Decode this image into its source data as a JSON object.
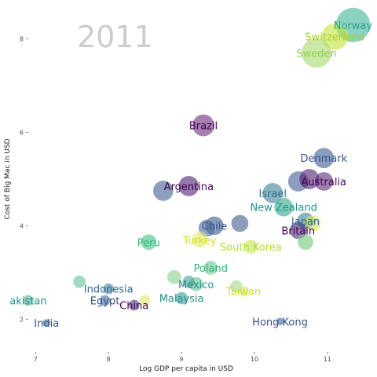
{
  "chart_data": {
    "type": "scatter",
    "annotation": "2011",
    "xlabel": "Log GDP per capita in USD",
    "ylabel": "Cost of Big Mac in USD",
    "xlim": [
      6.9,
      11.55
    ],
    "ylim": [
      1.3,
      8.7
    ],
    "xticks": [
      7,
      8,
      9,
      10,
      11
    ],
    "yticks": [
      2,
      4,
      6,
      8
    ],
    "grid": false,
    "points": [
      {
        "x": 11.35,
        "y": 8.3,
        "size": 22,
        "color": "#3cb596",
        "label": "Norway",
        "lcolor": "#2a9d8f"
      },
      {
        "x": 11.1,
        "y": 8.05,
        "size": 17,
        "color": "#c5e33a",
        "label": "Switzerland",
        "lcolor": "#a8cf2e"
      },
      {
        "x": 10.85,
        "y": 7.7,
        "size": 19,
        "color": "#a9d86a",
        "label": "Sweden",
        "lcolor": "#8fd14f"
      },
      {
        "x": 9.3,
        "y": 6.15,
        "size": 14,
        "color": "#6a2a7c",
        "label": "Brazil",
        "lcolor": "#440154"
      },
      {
        "x": 10.95,
        "y": 5.45,
        "size": 13,
        "color": "#3a5d93",
        "label": "Denmark",
        "lcolor": "#3b528b"
      },
      {
        "x": 10.6,
        "y": 4.95,
        "size": 13,
        "color": "#405e94",
        "label": "",
        "lcolor": ""
      },
      {
        "x": 10.75,
        "y": 5.0,
        "size": 13,
        "color": "#4c1e6e",
        "label": "",
        "lcolor": ""
      },
      {
        "x": 10.95,
        "y": 4.95,
        "size": 12,
        "color": "#5a2a78",
        "label": "Australia",
        "lcolor": "#440154"
      },
      {
        "x": 10.25,
        "y": 4.7,
        "size": 13,
        "color": "#3f7d96",
        "label": "Israel",
        "lcolor": "#2c728e"
      },
      {
        "x": 9.1,
        "y": 4.85,
        "size": 13,
        "color": "#4c1e6e",
        "label": "Argentina",
        "lcolor": "#440154"
      },
      {
        "x": 8.75,
        "y": 4.75,
        "size": 13,
        "color": "#415d93",
        "label": "",
        "lcolor": ""
      },
      {
        "x": 10.4,
        "y": 4.4,
        "size": 12,
        "color": "#2fa88a",
        "label": "New Zealand",
        "lcolor": "#21918c"
      },
      {
        "x": 10.7,
        "y": 4.1,
        "size": 11,
        "color": "#3d7f9a",
        "label": "Japan",
        "lcolor": "#31688e"
      },
      {
        "x": 10.8,
        "y": 4.05,
        "size": 10,
        "color": "#d3e84f",
        "label": "",
        "lcolor": ""
      },
      {
        "x": 9.8,
        "y": 4.05,
        "size": 11,
        "color": "#3f5c93",
        "label": "",
        "lcolor": ""
      },
      {
        "x": 9.45,
        "y": 4.0,
        "size": 12,
        "color": "#3b5890",
        "label": "Chile",
        "lcolor": "#3b528b"
      },
      {
        "x": 9.35,
        "y": 3.95,
        "size": 11,
        "color": "#4a6a98",
        "label": "",
        "lcolor": ""
      },
      {
        "x": 10.6,
        "y": 3.9,
        "size": 11,
        "color": "#4b2a78",
        "label": "Britain",
        "lcolor": "#440154"
      },
      {
        "x": 9.25,
        "y": 3.7,
        "size": 10,
        "color": "#dfe95e",
        "label": "Turkey",
        "lcolor": "#d0e11c"
      },
      {
        "x": 8.55,
        "y": 3.65,
        "size": 10,
        "color": "#43c08a",
        "label": "Peru",
        "lcolor": "#35b779"
      },
      {
        "x": 10.7,
        "y": 3.65,
        "size": 10,
        "color": "#70c97a",
        "label": "",
        "lcolor": ""
      },
      {
        "x": 9.95,
        "y": 3.55,
        "size": 9,
        "color": "#c9e55a",
        "label": "South Korea",
        "lcolor": "#b5de2b"
      },
      {
        "x": 9.4,
        "y": 3.1,
        "size": 9,
        "color": "#68c78f",
        "label": "Poland",
        "lcolor": "#35b779"
      },
      {
        "x": 8.9,
        "y": 2.9,
        "size": 9,
        "color": "#86d18a",
        "label": "",
        "lcolor": ""
      },
      {
        "x": 9.2,
        "y": 2.75,
        "size": 9,
        "color": "#5dbf91",
        "label": "Mexico",
        "lcolor": "#21918c"
      },
      {
        "x": 9.1,
        "y": 2.8,
        "size": 8,
        "color": "#3fa08f",
        "label": "",
        "lcolor": ""
      },
      {
        "x": 7.6,
        "y": 2.8,
        "size": 8,
        "color": "#5fc29a",
        "label": "",
        "lcolor": ""
      },
      {
        "x": 8.0,
        "y": 2.65,
        "size": 7,
        "color": "#3a7d98",
        "label": "Indonesia",
        "lcolor": "#31688e"
      },
      {
        "x": 9.75,
        "y": 2.7,
        "size": 8,
        "color": "#a0d88c",
        "label": "",
        "lcolor": ""
      },
      {
        "x": 9.85,
        "y": 2.6,
        "size": 7,
        "color": "#dbe77a",
        "label": "Taiwan",
        "lcolor": "#d0e11c"
      },
      {
        "x": 7.95,
        "y": 2.4,
        "size": 7,
        "color": "#3e6c98",
        "label": "Egypt",
        "lcolor": "#3b528b"
      },
      {
        "x": 9.0,
        "y": 2.45,
        "size": 8,
        "color": "#3a9a92",
        "label": "Malaysia",
        "lcolor": "#21918c"
      },
      {
        "x": 8.5,
        "y": 2.4,
        "size": 7,
        "color": "#e0e765",
        "label": "",
        "lcolor": ""
      },
      {
        "x": 8.35,
        "y": 2.3,
        "size": 7,
        "color": "#4a3a7a",
        "label": "China",
        "lcolor": "#440154"
      },
      {
        "x": 6.9,
        "y": 2.4,
        "size": 7,
        "color": "#4fb596",
        "label": "akistan",
        "lcolor": "#21918c"
      },
      {
        "x": 7.15,
        "y": 1.92,
        "size": 5,
        "color": "#3a6a9a",
        "label": "India",
        "lcolor": "#3b528b"
      },
      {
        "x": 10.35,
        "y": 1.95,
        "size": 5,
        "color": "#3a6a9a",
        "label": "Hong Kong",
        "lcolor": "#3b528b"
      }
    ]
  }
}
